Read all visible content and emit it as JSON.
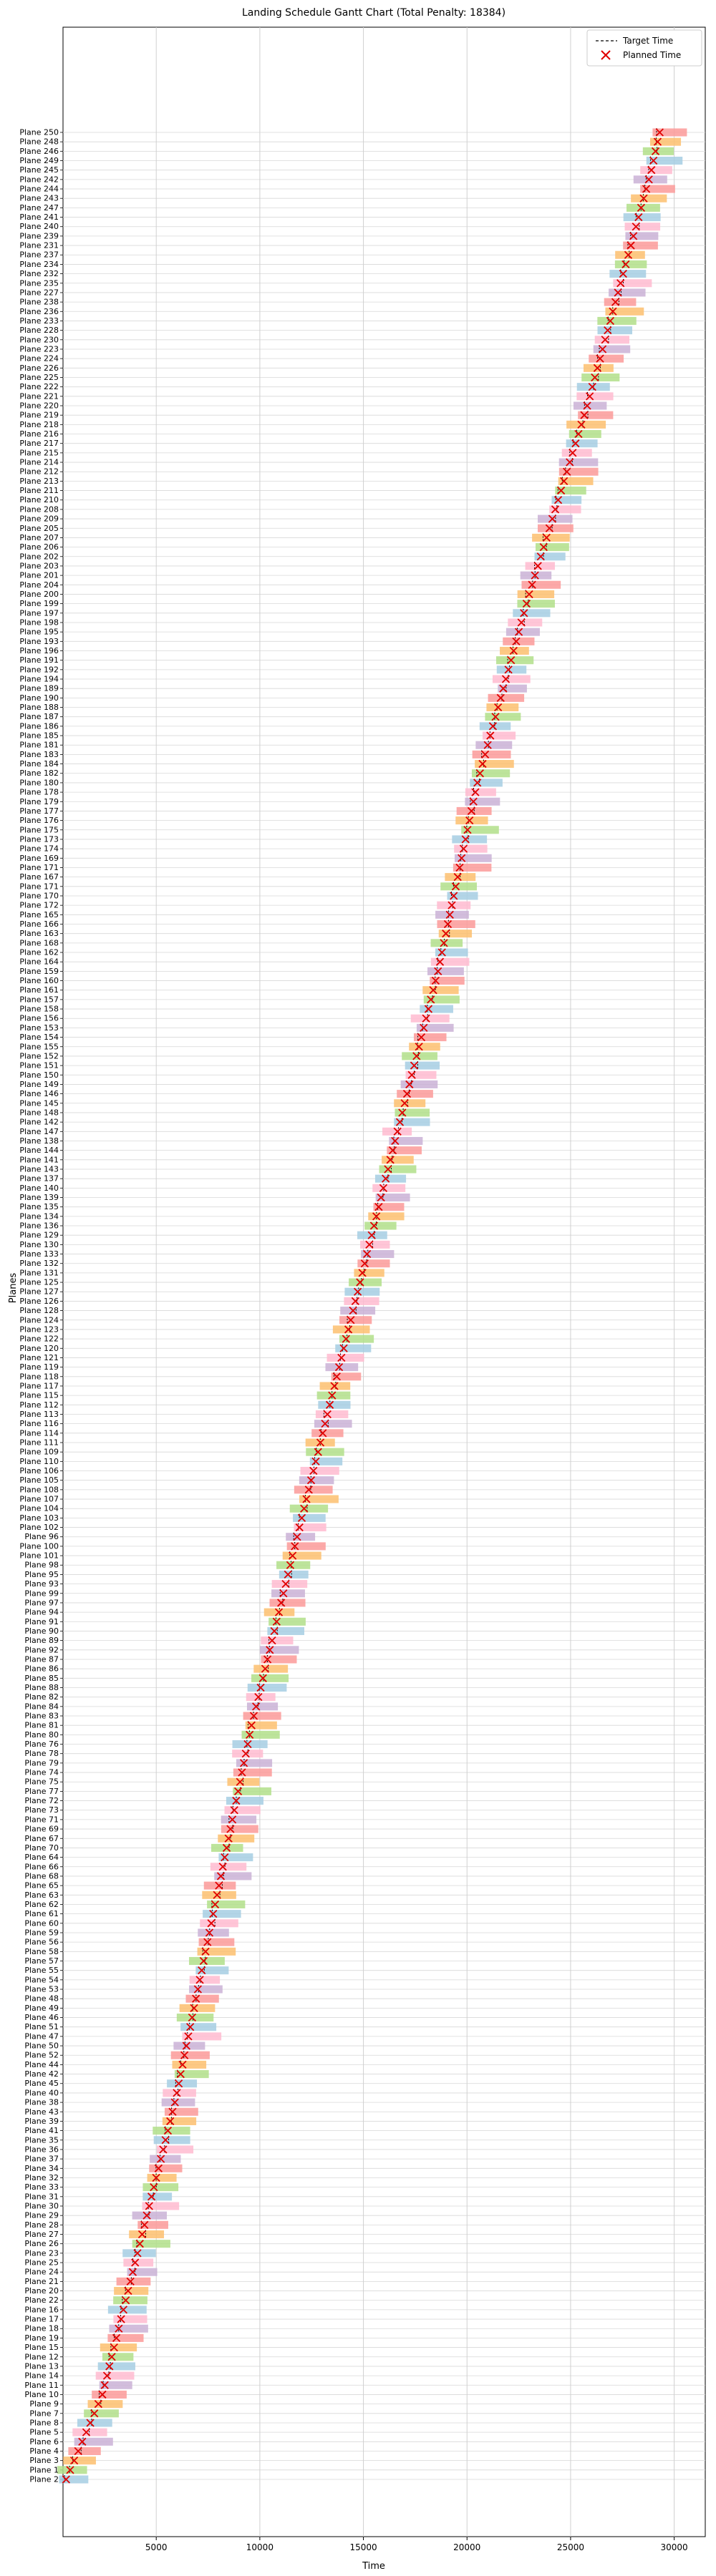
{
  "chart_data": {
    "type": "gantt",
    "title": "Landing Schedule Gantt Chart (Total Penalty: 18384)",
    "xlabel": "Time",
    "ylabel": "Planes",
    "xlim": [
      500,
      31500
    ],
    "x_ticks": [
      5000,
      10000,
      15000,
      20000,
      25000,
      30000
    ],
    "grid": true,
    "legend": {
      "position": "top-right",
      "entries": [
        {
          "label": "Target Time",
          "marker": "dashed-line"
        },
        {
          "label": "Planned Time",
          "marker": "x",
          "color": "#e00000"
        }
      ]
    },
    "bar_colors": [
      "#a6cee3",
      "#b2df8a",
      "#fdbf6f",
      "#fb9a99",
      "#cab2d6",
      "#ffbbd0"
    ],
    "bar_span": 1400,
    "rows_bottom_to_top": [
      "Plane 2",
      "Plane 1",
      "Plane 3",
      "Plane 4",
      "Plane 6",
      "Plane 5",
      "Plane 8",
      "Plane 7",
      "Plane 9",
      "Plane 10",
      "Plane 11",
      "Plane 14",
      "Plane 13",
      "Plane 12",
      "Plane 15",
      "Plane 19",
      "Plane 18",
      "Plane 17",
      "Plane 16",
      "Plane 22",
      "Plane 20",
      "Plane 21",
      "Plane 24",
      "Plane 25",
      "Plane 23",
      "Plane 26",
      "Plane 27",
      "Plane 28",
      "Plane 29",
      "Plane 30",
      "Plane 31",
      "Plane 33",
      "Plane 32",
      "Plane 34",
      "Plane 37",
      "Plane 36",
      "Plane 35",
      "Plane 41",
      "Plane 39",
      "Plane 43",
      "Plane 38",
      "Plane 40",
      "Plane 45",
      "Plane 42",
      "Plane 44",
      "Plane 52",
      "Plane 50",
      "Plane 47",
      "Plane 51",
      "Plane 46",
      "Plane 49",
      "Plane 48",
      "Plane 53",
      "Plane 54",
      "Plane 55",
      "Plane 57",
      "Plane 58",
      "Plane 56",
      "Plane 59",
      "Plane 60",
      "Plane 61",
      "Plane 62",
      "Plane 63",
      "Plane 65",
      "Plane 68",
      "Plane 66",
      "Plane 64",
      "Plane 70",
      "Plane 67",
      "Plane 69",
      "Plane 71",
      "Plane 73",
      "Plane 72",
      "Plane 77",
      "Plane 75",
      "Plane 74",
      "Plane 79",
      "Plane 78",
      "Plane 76",
      "Plane 80",
      "Plane 81",
      "Plane 83",
      "Plane 84",
      "Plane 82",
      "Plane 88",
      "Plane 85",
      "Plane 86",
      "Plane 87",
      "Plane 92",
      "Plane 89",
      "Plane 90",
      "Plane 91",
      "Plane 94",
      "Plane 97",
      "Plane 99",
      "Plane 93",
      "Plane 95",
      "Plane 98",
      "Plane 101",
      "Plane 100",
      "Plane 96",
      "Plane 102",
      "Plane 103",
      "Plane 104",
      "Plane 107",
      "Plane 108",
      "Plane 105",
      "Plane 106",
      "Plane 110",
      "Plane 109",
      "Plane 111",
      "Plane 114",
      "Plane 116",
      "Plane 113",
      "Plane 112",
      "Plane 115",
      "Plane 117",
      "Plane 118",
      "Plane 119",
      "Plane 121",
      "Plane 120",
      "Plane 122",
      "Plane 123",
      "Plane 124",
      "Plane 128",
      "Plane 126",
      "Plane 127",
      "Plane 125",
      "Plane 131",
      "Plane 132",
      "Plane 133",
      "Plane 130",
      "Plane 129",
      "Plane 136",
      "Plane 134",
      "Plane 135",
      "Plane 139",
      "Plane 140",
      "Plane 137",
      "Plane 143",
      "Plane 141",
      "Plane 144",
      "Plane 138",
      "Plane 147",
      "Plane 142",
      "Plane 148",
      "Plane 145",
      "Plane 146",
      "Plane 149",
      "Plane 150",
      "Plane 151",
      "Plane 152",
      "Plane 155",
      "Plane 154",
      "Plane 153",
      "Plane 156",
      "Plane 158",
      "Plane 157",
      "Plane 161",
      "Plane 160",
      "Plane 159",
      "Plane 164",
      "Plane 162",
      "Plane 168",
      "Plane 163",
      "Plane 166",
      "Plane 165",
      "Plane 172",
      "Plane 170",
      "Plane 171",
      "Plane 167",
      "Plane 171",
      "Plane 169",
      "Plane 174",
      "Plane 173",
      "Plane 175",
      "Plane 176",
      "Plane 177",
      "Plane 179",
      "Plane 178",
      "Plane 180",
      "Plane 182",
      "Plane 184",
      "Plane 183",
      "Plane 181",
      "Plane 185",
      "Plane 186",
      "Plane 187",
      "Plane 188",
      "Plane 190",
      "Plane 189",
      "Plane 194",
      "Plane 192",
      "Plane 191",
      "Plane 196",
      "Plane 193",
      "Plane 195",
      "Plane 198",
      "Plane 197",
      "Plane 199",
      "Plane 200",
      "Plane 204",
      "Plane 201",
      "Plane 203",
      "Plane 202",
      "Plane 206",
      "Plane 207",
      "Plane 205",
      "Plane 209",
      "Plane 208",
      "Plane 210",
      "Plane 211",
      "Plane 213",
      "Plane 212",
      "Plane 214",
      "Plane 215",
      "Plane 217",
      "Plane 216",
      "Plane 218",
      "Plane 219",
      "Plane 220",
      "Plane 221",
      "Plane 222",
      "Plane 225",
      "Plane 226",
      "Plane 224",
      "Plane 223",
      "Plane 230",
      "Plane 228",
      "Plane 233",
      "Plane 236",
      "Plane 238",
      "Plane 227",
      "Plane 235",
      "Plane 232",
      "Plane 234",
      "Plane 237",
      "Plane 231",
      "Plane 239",
      "Plane 240",
      "Plane 241",
      "Plane 247",
      "Plane 243",
      "Plane 244",
      "Plane 242",
      "Plane 245",
      "Plane 249",
      "Plane 246",
      "Plane 248",
      "Plane 250"
    ],
    "planned_anchor_times": [
      {
        "row": 0,
        "time": 650
      },
      {
        "row": 9,
        "time": 2400
      },
      {
        "row": 40,
        "time": 5900
      },
      {
        "row": 80,
        "time": 9600
      },
      {
        "row": 100,
        "time": 11800
      },
      {
        "row": 140,
        "time": 16300
      },
      {
        "row": 160,
        "time": 18600
      },
      {
        "row": 180,
        "time": 20500
      },
      {
        "row": 200,
        "time": 23000
      },
      {
        "row": 220,
        "time": 25800
      },
      {
        "row": 245,
        "time": 28900
      },
      {
        "row": 249,
        "time": 29300
      }
    ]
  }
}
